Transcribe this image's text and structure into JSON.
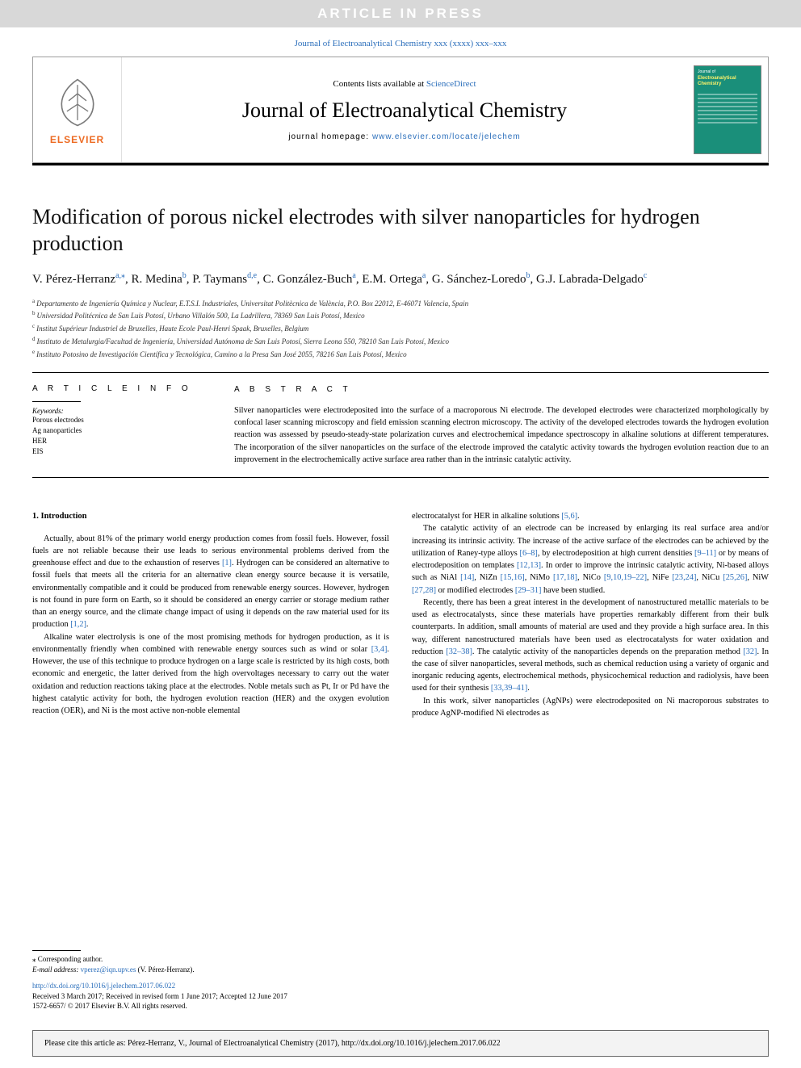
{
  "banner": {
    "text": "ARTICLE IN PRESS"
  },
  "journal_ref": {
    "prefix": "Journal of Electroanalytical Chemistry xxx (xxxx) xxx–xxx"
  },
  "header": {
    "contents_prefix": "Contents lists available at ",
    "contents_link": "ScienceDirect",
    "journal_name": "Journal of Electroanalytical Chemistry",
    "homepage_prefix": "journal homepage: ",
    "homepage_link": "www.elsevier.com/locate/jelechem",
    "publisher_name": "ELSEVIER",
    "cover_small_text": "Journal of",
    "cover_title": "Electroanalytical Chemistry"
  },
  "title": "Modification of porous nickel electrodes with silver nanoparticles for hydrogen production",
  "authors_html": "V. Pérez-Herranz<sup class='aff-sup'>a,</sup><a href='#'><sup class='aff-sup'>⁎</sup></a>, R. Medina<sup class='aff-sup'>b</sup>, P. Taymans<sup class='aff-sup'>d,e</sup>, C. González-Buch<sup class='aff-sup'>a</sup>, E.M. Ortega<sup class='aff-sup'>a</sup>, G. Sánchez-Loredo<sup class='aff-sup'>b</sup>, G.J. Labrada-Delgado<sup class='aff-sup'>c</sup>",
  "affiliations": [
    {
      "sup": "a",
      "text": "Departamento de Ingeniería Química y Nuclear, E.T.S.I. Industriales, Universitat Politècnica de València, P.O. Box 22012, E-46071 Valencia, Spain"
    },
    {
      "sup": "b",
      "text": "Universidad Politécnica de San Luis Potosí, Urbano Villalón 500, La Ladrillera, 78369 San Luis Potosí, Mexico"
    },
    {
      "sup": "c",
      "text": "Institut Supérieur Industriel de Bruxelles, Haute Ecole Paul-Henri Spaak, Bruxelles, Belgium"
    },
    {
      "sup": "d",
      "text": "Instituto de Metalurgia/Facultad de Ingeniería, Universidad Autónoma de San Luis Potosí, Sierra Leona 550, 78210 San Luis Potosí, Mexico"
    },
    {
      "sup": "e",
      "text": "Instituto Potosino de Investigación Científica y Tecnológica, Camino a la Presa San José 2055, 78216 San Luis Potosí, Mexico"
    }
  ],
  "article_info": {
    "heading": "A R T I C L E  I N F O",
    "keywords_label": "Keywords:",
    "keywords": [
      "Porous electrodes",
      "Ag nanoparticles",
      "HER",
      "EIS"
    ]
  },
  "abstract": {
    "heading": "A B S T R A C T",
    "text": "Silver nanoparticles were electrodeposited into the surface of a macroporous Ni electrode. The developed electrodes were characterized morphologically by confocal laser scanning microscopy and field emission scanning electron microscopy. The activity of the developed electrodes towards the hydrogen evolution reaction was assessed by pseudo-steady-state polarization curves and electrochemical impedance spectroscopy in alkaline solutions at different temperatures. The incorporation of the silver nanoparticles on the surface of the electrode improved the catalytic activity towards the hydrogen evolution reaction due to an improvement in the electrochemically active surface area rather than in the intrinsic catalytic activity."
  },
  "intro": {
    "heading": "1. Introduction",
    "p1_html": "Actually, about 81% of the primary world energy production comes from fossil fuels. However, fossil fuels are not reliable because their use leads to serious environmental problems derived from the greenhouse effect and due to the exhaustion of reserves <a class='link' href='#'>[1]</a>. Hydrogen can be considered an alternative to fossil fuels that meets all the criteria for an alternative clean energy source because it is versatile, environmentally compatible and it could be produced from renewable energy sources. However, hydrogen is not found in pure form on Earth, so it should be considered an energy carrier or storage medium rather than an energy source, and the climate change impact of using it depends on the raw material used for its production <a class='link' href='#'>[1,2]</a>.",
    "p2_html": "Alkaline water electrolysis is one of the most promising methods for hydrogen production, as it is environmentally friendly when combined with renewable energy sources such as wind or solar <a class='link' href='#'>[3,4]</a>. However, the use of this technique to produce hydrogen on a large scale is restricted by its high costs, both economic and energetic, the latter derived from the high overvoltages necessary to carry out the water oxidation and reduction reactions taking place at the electrodes. Noble metals such as Pt, Ir or Pd have the highest catalytic activity for both, the hydrogen evolution reaction (HER) and the oxygen evolution reaction (OER), and Ni is the most active non-noble elemental",
    "p3_html": "electrocatalyst for HER in alkaline solutions <a class='link' href='#'>[5,6]</a>.",
    "p4_html": "The catalytic activity of an electrode can be increased by enlarging its real surface area and/or increasing its intrinsic activity. The increase of the active surface of the electrodes can be achieved by the utilization of Raney-type alloys <a class='link' href='#'>[6–8]</a>, by electrodeposition at high current densities <a class='link' href='#'>[9–11]</a> or by means of electrodeposition on templates <a class='link' href='#'>[12,13]</a>. In order to improve the intrinsic catalytic activity, Ni-based alloys such as NiAl <a class='link' href='#'>[14]</a>, NiZn <a class='link' href='#'>[15,16]</a>, NiMo <a class='link' href='#'>[17,18]</a>, NiCo <a class='link' href='#'>[9,10,19–22]</a>, NiFe <a class='link' href='#'>[23,24]</a>, NiCu <a class='link' href='#'>[25,26]</a>, NiW <a class='link' href='#'>[27,28]</a> or modified electrodes <a class='link' href='#'>[29–31]</a> have been studied.",
    "p5_html": "Recently, there has been a great interest in the development of nanostructured metallic materials to be used as electrocatalysts, since these materials have properties remarkably different from their bulk counterparts. In addition, small amounts of material are used and they provide a high surface area. In this way, different nanostructured materials have been used as electrocatalysts for water oxidation and reduction <a class='link' href='#'>[32–38]</a>. The catalytic activity of the nanoparticles depends on the preparation method <a class='link' href='#'>[32]</a>. In the case of silver nanoparticles, several methods, such as chemical reduction using a variety of organic and inorganic reducing agents, electrochemical methods, physicochemical reduction and radiolysis, have been used for their synthesis <a class='link' href='#'>[33,39–41]</a>.",
    "p6_html": "In this work, silver nanoparticles (AgNPs) were electrodeposited on Ni macroporous substrates to produce AgNP-modified Ni electrodes as"
  },
  "footer": {
    "corr": "⁎ Corresponding author.",
    "email_label": "E-mail address: ",
    "email": "vperez@iqn.upv.es",
    "email_suffix": " (V. Pérez-Herranz).",
    "doi": "http://dx.doi.org/10.1016/j.jelechem.2017.06.022",
    "received": "Received 3 March 2017; Received in revised form 1 June 2017; Accepted 12 June 2017",
    "issn": "1572-6657/ © 2017 Elsevier B.V. All rights reserved."
  },
  "cite_box": "Please cite this article as: Pérez-Herranz, V., Journal of Electroanalytical Chemistry (2017), http://dx.doi.org/10.1016/j.jelechem.2017.06.022",
  "colors": {
    "link": "#2a6ebb",
    "publisher_orange": "#ed6b23",
    "cover_bg": "#1a8f7a",
    "banner_bg": "#d8d8d8",
    "cite_bg": "#f3f3f3"
  }
}
